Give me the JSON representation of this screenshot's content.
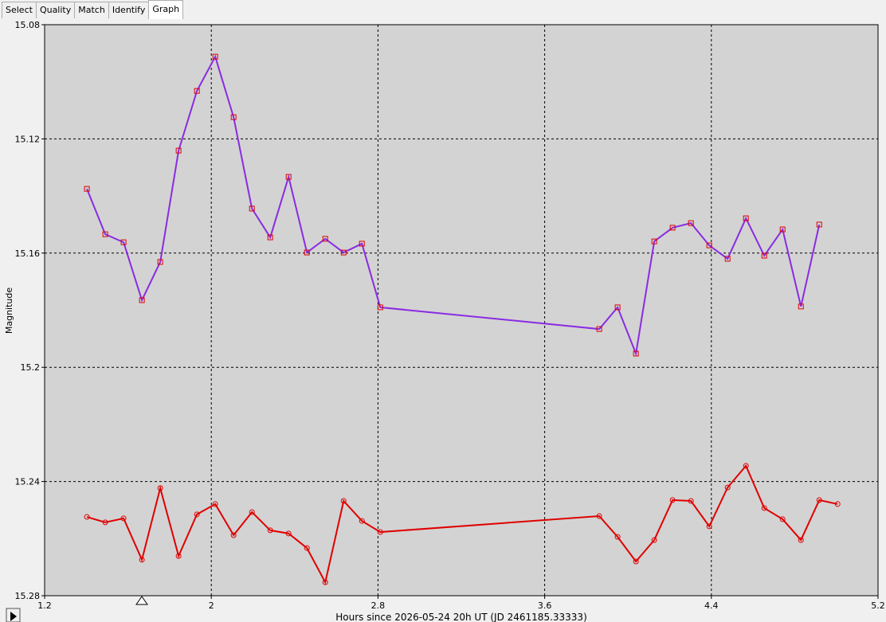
{
  "tabs": [
    "Select",
    "Quality",
    "Match",
    "Identify",
    "Graph"
  ],
  "active_tab": 4,
  "chart_data": {
    "type": "line",
    "x_label": "Hours since 2026-05-24 20h UT (JD 2461185.33333)",
    "y_label": "Magnitude",
    "x": [
      1.403,
      1.491,
      1.579,
      1.667,
      1.755,
      1.843,
      1.931,
      2.019,
      2.107,
      2.195,
      2.283,
      2.371,
      2.459,
      2.547,
      2.635,
      2.723,
      2.811,
      3.862,
      3.95,
      4.038,
      4.126,
      4.214,
      4.302,
      4.39,
      4.478,
      4.566,
      4.654,
      4.742,
      4.83,
      4.918,
      5.006
    ],
    "series": [
      {
        "color": "#8a2be2",
        "marker": "square",
        "marker_color": "#e00000",
        "values": [
          15.1375,
          15.1534,
          15.1562,
          15.1765,
          15.1631,
          15.1241,
          15.1032,
          15.0912,
          15.1124,
          15.1444,
          15.1545,
          15.1333,
          15.1598,
          15.155,
          15.1598,
          15.1567,
          15.179,
          15.1866,
          15.179,
          15.1952,
          15.1559,
          15.1511,
          15.1495,
          15.1573,
          15.162,
          15.1478,
          15.1609,
          15.1517,
          15.1787,
          15.15,
          null
        ]
      },
      {
        "color": "#e00000",
        "marker": "circle",
        "marker_color": "#e00000",
        "values": [
          15.2524,
          15.2543,
          15.2529,
          15.2674,
          15.2423,
          15.2661,
          15.2515,
          15.2479,
          15.2588,
          15.2507,
          15.2571,
          15.2582,
          15.2633,
          15.2753,
          15.2468,
          15.2538,
          15.2577,
          15.2521,
          15.2594,
          15.268,
          15.2605,
          15.2465,
          15.2468,
          15.2557,
          15.2421,
          15.2345,
          15.2493,
          15.2532,
          15.2605,
          15.2465,
          15.2479
        ]
      }
    ],
    "xlim": [
      1.2,
      5.2
    ],
    "ylim": [
      15.28,
      15.08
    ],
    "xticks": [
      1.2,
      2,
      2.8,
      3.6,
      4.4,
      5.2
    ],
    "yticks": [
      15.08,
      15.12,
      15.16,
      15.2,
      15.24,
      15.28
    ],
    "grid": true,
    "plot_background": "#d3d3d3"
  }
}
